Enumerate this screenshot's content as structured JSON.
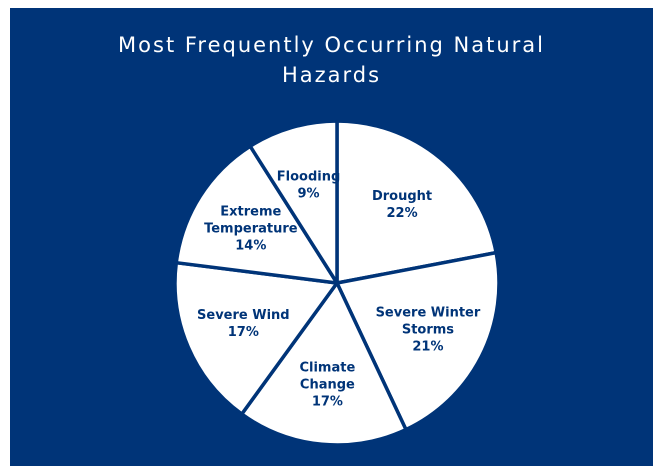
{
  "colors": {
    "background": "#003478",
    "slice_fill": "#ffffff",
    "slice_stroke": "#003478",
    "label": "#003478",
    "title": "#ffffff"
  },
  "chart_data": {
    "type": "pie",
    "title": "Most Frequently Occurring Natural Hazards",
    "title_lines": [
      "Most Frequently Occurring Natural",
      "Hazards"
    ],
    "slices": [
      {
        "name": "Drought",
        "label_lines": [
          "Drought"
        ],
        "value": 22,
        "value_label": "22%"
      },
      {
        "name": "Severe Winter Storms",
        "label_lines": [
          "Severe Winter",
          "Storms"
        ],
        "value": 21,
        "value_label": "21%"
      },
      {
        "name": "Climate Change",
        "label_lines": [
          "Climate",
          "Change"
        ],
        "value": 17,
        "value_label": "17%"
      },
      {
        "name": "Severe Wind",
        "label_lines": [
          "Severe Wind"
        ],
        "value": 17,
        "value_label": "17%"
      },
      {
        "name": "Extreme Temperature",
        "label_lines": [
          "Extreme",
          "Temperature"
        ],
        "value": 14,
        "value_label": "14%"
      },
      {
        "name": "Flooding",
        "label_lines": [
          "Flooding"
        ],
        "value": 9,
        "value_label": "9%"
      }
    ],
    "start_angle": "12 o'clock",
    "direction": "clockwise",
    "legend": "none"
  }
}
